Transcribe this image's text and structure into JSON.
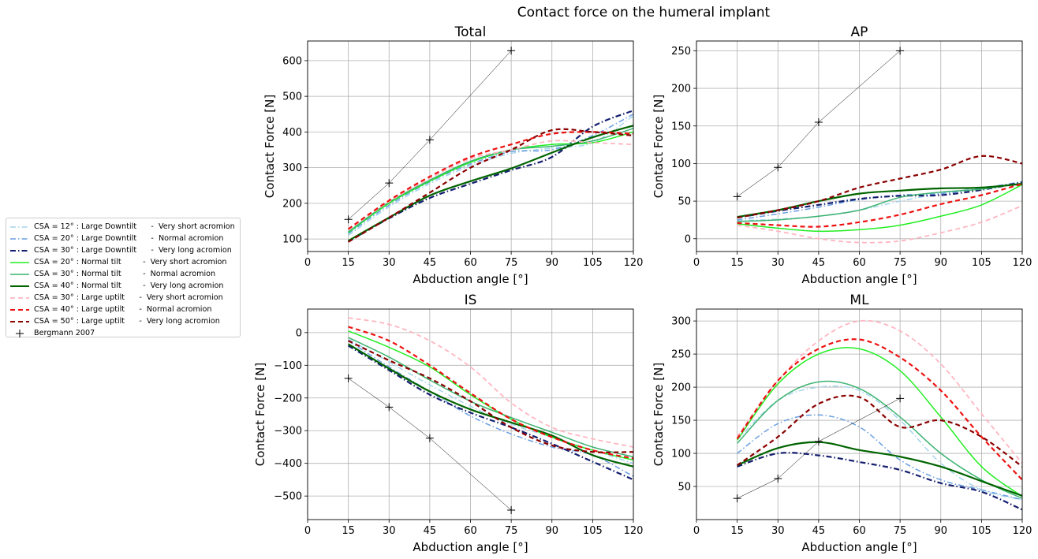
{
  "figure": {
    "title": "Contact force on the humeral implant"
  },
  "legend": {
    "placement": "left-center",
    "entries": [
      {
        "label": "CSA = 12° : Large Downtilt      -  Very short acromion",
        "color": "#a6d4ec",
        "dash": "dashdot",
        "width": 1.5
      },
      {
        "label": "CSA = 20° : Large Downtilt      -  Normal acromion",
        "color": "#6a9fe0",
        "dash": "dashdot",
        "width": 1.5
      },
      {
        "label": "CSA = 30° : Large Downtilt      -  Very long acromion",
        "color": "#141e6e",
        "dash": "dashdot",
        "width": 2.2
      },
      {
        "label": "CSA = 20° : Normal tilt         -  Very short acromion",
        "color": "#22ee22",
        "dash": "solid",
        "width": 1.5
      },
      {
        "label": "CSA = 30° : Normal tilt         -  Normal acromion",
        "color": "#3cb371",
        "dash": "solid",
        "width": 1.5
      },
      {
        "label": "CSA = 40° : Normal tilt         -  Very long acromion",
        "color": "#006400",
        "dash": "solid",
        "width": 2.2
      },
      {
        "label": "CSA = 30° : Large uptilt      -  Very short acromion",
        "color": "#ffb6c1",
        "dash": "dashed",
        "width": 1.8
      },
      {
        "label": "CSA = 40° : Large uptilt      -  Normal acromion",
        "color": "#ee1111",
        "dash": "dashed",
        "width": 2.2
      },
      {
        "label": "CSA = 50° : Large uptilt      -  Very long acromion",
        "color": "#8b0000",
        "dash": "dashed",
        "width": 2.2
      },
      {
        "label": "Bergmann 2007",
        "color": "#000000",
        "dash": "marker",
        "width": 0.5
      }
    ]
  },
  "chart_data": [
    {
      "type": "line",
      "title": "Total",
      "xlabel": "Abduction angle [°]",
      "ylabel": "Contact Force [N]",
      "xlim": [
        0,
        120
      ],
      "ylim": [
        65,
        655
      ],
      "xticks": [
        "0",
        "15",
        "30",
        "45",
        "60",
        "75",
        "90",
        "105",
        "120"
      ],
      "yticks": [
        "100",
        "200",
        "300",
        "400",
        "500",
        "600"
      ],
      "grid": true,
      "x": [
        15,
        30,
        45,
        60,
        75,
        90,
        105,
        120
      ],
      "series": [
        {
          "name": "CSA = 12° : Large Downtilt      -  Very short acromion",
          "values": [
            110,
            190,
            255,
            305,
            340,
            355,
            370,
            445
          ]
        },
        {
          "name": "CSA = 20° : Large Downtilt      -  Normal acromion",
          "values": [
            115,
            195,
            260,
            310,
            345,
            350,
            390,
            450
          ]
        },
        {
          "name": "CSA = 30° : Large Downtilt      -  Very long acromion",
          "values": [
            93,
            158,
            215,
            255,
            293,
            330,
            415,
            460
          ]
        },
        {
          "name": "CSA = 20° : Normal tilt         -  Very short acromion",
          "values": [
            118,
            200,
            262,
            315,
            350,
            365,
            370,
            400
          ]
        },
        {
          "name": "CSA = 30° : Normal tilt         -  Normal acromion",
          "values": [
            120,
            203,
            265,
            318,
            350,
            360,
            375,
            410
          ]
        },
        {
          "name": "CSA = 40° : Normal tilt         -  Very long acromion",
          "values": [
            95,
            160,
            222,
            262,
            298,
            342,
            385,
            418
          ]
        },
        {
          "name": "CSA = 30° : Large uptilt      -  Very short acromion",
          "values": [
            125,
            205,
            270,
            325,
            350,
            375,
            370,
            365
          ]
        },
        {
          "name": "CSA = 40° : Large uptilt      -  Normal acromion",
          "values": [
            128,
            208,
            275,
            330,
            365,
            395,
            400,
            395
          ]
        },
        {
          "name": "CSA = 50° : Large uptilt      -  Very long acromion",
          "values": [
            92,
            160,
            230,
            300,
            350,
            405,
            400,
            390
          ]
        },
        {
          "name": "Bergmann 2007",
          "x": [
            15,
            30,
            45,
            75
          ],
          "values": [
            155,
            257,
            378,
            628
          ]
        }
      ]
    },
    {
      "type": "line",
      "title": "AP",
      "xlabel": "Abduction angle [°]",
      "ylabel": "Contact Force [N]",
      "xlim": [
        0,
        120
      ],
      "ylim": [
        -17,
        263
      ],
      "xticks": [
        "0",
        "15",
        "30",
        "45",
        "60",
        "75",
        "90",
        "105",
        "120"
      ],
      "yticks": [
        "0",
        "50",
        "100",
        "150",
        "200",
        "250"
      ],
      "grid": true,
      "x": [
        15,
        30,
        45,
        60,
        75,
        90,
        105,
        120
      ],
      "series": [
        {
          "name": "CSA = 12° : Large Downtilt      -  Very short acromion",
          "values": [
            24,
            26,
            30,
            38,
            50,
            60,
            68,
            75
          ]
        },
        {
          "name": "CSA = 20° : Large Downtilt      -  Normal acromion",
          "values": [
            25,
            33,
            42,
            52,
            58,
            60,
            67,
            76
          ]
        },
        {
          "name": "CSA = 30° : Large Downtilt      -  Very long acromion",
          "values": [
            28,
            37,
            45,
            53,
            57,
            58,
            65,
            75
          ]
        },
        {
          "name": "CSA = 20° : Normal tilt         -  Very short acromion",
          "values": [
            20,
            14,
            10,
            12,
            18,
            30,
            45,
            72
          ]
        },
        {
          "name": "CSA = 30° : Normal tilt         -  Normal acromion",
          "values": [
            23,
            25,
            30,
            38,
            55,
            62,
            66,
            74
          ]
        },
        {
          "name": "CSA = 40° : Normal tilt         -  Very long acromion",
          "values": [
            29,
            38,
            50,
            60,
            64,
            67,
            68,
            73
          ]
        },
        {
          "name": "CSA = 30° : Large uptilt      -  Very short acromion",
          "values": [
            18,
            10,
            0,
            -5,
            -3,
            8,
            22,
            44
          ]
        },
        {
          "name": "CSA = 40° : Large uptilt      -  Normal acromion",
          "values": [
            21,
            18,
            16,
            22,
            32,
            46,
            58,
            73
          ]
        },
        {
          "name": "CSA = 50° : Large uptilt      -  Very long acromion",
          "values": [
            28,
            38,
            50,
            68,
            80,
            92,
            110,
            100
          ]
        },
        {
          "name": "Bergmann 2007",
          "x": [
            15,
            30,
            45,
            75
          ],
          "values": [
            56,
            95,
            155,
            250
          ]
        }
      ]
    },
    {
      "type": "line",
      "title": "IS",
      "xlabel": "Abduction angle [°]",
      "ylabel": "Contact Force [N]",
      "xlim": [
        0,
        120
      ],
      "ylim": [
        -572,
        72
      ],
      "xticks": [
        "0",
        "15",
        "30",
        "45",
        "60",
        "75",
        "90",
        "105",
        "120"
      ],
      "yticks": [
        "0",
        "−100",
        "−200",
        "−300",
        "−400",
        "−500"
      ],
      "grid": true,
      "x": [
        15,
        30,
        45,
        60,
        75,
        90,
        105,
        120
      ],
      "series": [
        {
          "name": "CSA = 12° : Large Downtilt      -  Very short acromion",
          "values": [
            -20,
            -90,
            -160,
            -225,
            -280,
            -320,
            -360,
            -400
          ]
        },
        {
          "name": "CSA = 20° : Large Downtilt      -  Normal acromion",
          "values": [
            -25,
            -105,
            -180,
            -255,
            -310,
            -350,
            -375,
            -440
          ]
        },
        {
          "name": "CSA = 30° : Large Downtilt      -  Very long acromion",
          "values": [
            -40,
            -115,
            -190,
            -245,
            -290,
            -340,
            -395,
            -450
          ]
        },
        {
          "name": "CSA = 20° : Normal tilt         -  Very short acromion",
          "values": [
            5,
            -45,
            -105,
            -190,
            -265,
            -320,
            -360,
            -390
          ]
        },
        {
          "name": "CSA = 30° : Normal tilt         -  Normal acromion",
          "values": [
            -15,
            -75,
            -145,
            -210,
            -260,
            -305,
            -350,
            -380
          ]
        },
        {
          "name": "CSA = 40° : Normal tilt         -  Very long acromion",
          "values": [
            -35,
            -110,
            -180,
            -235,
            -275,
            -315,
            -375,
            -410
          ]
        },
        {
          "name": "CSA = 30° : Large uptilt      -  Very short acromion",
          "values": [
            45,
            25,
            -25,
            -105,
            -215,
            -290,
            -325,
            -350
          ]
        },
        {
          "name": "CSA = 40° : Large uptilt      -  Normal acromion",
          "values": [
            18,
            -25,
            -100,
            -185,
            -265,
            -320,
            -360,
            -385
          ]
        },
        {
          "name": "CSA = 50° : Large uptilt      -  Very long acromion",
          "values": [
            -25,
            -85,
            -140,
            -210,
            -290,
            -345,
            -365,
            -365
          ]
        },
        {
          "name": "Bergmann 2007",
          "x": [
            15,
            30,
            45,
            75
          ],
          "values": [
            -140,
            -228,
            -323,
            -543
          ]
        }
      ]
    },
    {
      "type": "line",
      "title": "ML",
      "xlabel": "Abduction angle [°]",
      "ylabel": "Contact Force [N]",
      "xlim": [
        0,
        120
      ],
      "ylim": [
        0,
        318
      ],
      "xticks": [
        "0",
        "15",
        "30",
        "45",
        "60",
        "75",
        "90",
        "105",
        "120"
      ],
      "yticks": [
        "50",
        "100",
        "150",
        "200",
        "250",
        "300"
      ],
      "grid": true,
      "x": [
        15,
        30,
        45,
        60,
        75,
        90,
        105,
        120
      ],
      "series": [
        {
          "name": "CSA = 12° : Large Downtilt      -  Very short acromion",
          "values": [
            120,
            180,
            200,
            195,
            150,
            85,
            45,
            30
          ]
        },
        {
          "name": "CSA = 20° : Large Downtilt      -  Normal acromion",
          "values": [
            100,
            145,
            158,
            140,
            90,
            60,
            45,
            30
          ]
        },
        {
          "name": "CSA = 30° : Large Downtilt      -  Very long acromion",
          "values": [
            80,
            100,
            97,
            87,
            75,
            55,
            42,
            15
          ]
        },
        {
          "name": "CSA = 20° : Normal tilt         -  Very short acromion",
          "values": [
            120,
            205,
            250,
            258,
            225,
            155,
            80,
            35
          ]
        },
        {
          "name": "CSA = 30° : Normal tilt         -  Normal acromion",
          "values": [
            115,
            180,
            208,
            198,
            155,
            100,
            60,
            32
          ]
        },
        {
          "name": "CSA = 40° : Normal tilt         -  Very long acromion",
          "values": [
            82,
            108,
            117,
            105,
            95,
            80,
            58,
            36
          ]
        },
        {
          "name": "CSA = 30° : Large uptilt      -  Very short acromion",
          "values": [
            125,
            210,
            270,
            300,
            285,
            235,
            160,
            85
          ]
        },
        {
          "name": "CSA = 40° : Large uptilt      -  Normal acromion",
          "values": [
            122,
            210,
            258,
            272,
            245,
            195,
            125,
            60
          ]
        },
        {
          "name": "CSA = 50° : Large uptilt      -  Very long acromion",
          "values": [
            82,
            125,
            175,
            185,
            140,
            150,
            125,
            80
          ]
        },
        {
          "name": "Bergmann 2007",
          "x": [
            15,
            30,
            45,
            75
          ],
          "values": [
            32,
            62,
            118,
            183
          ]
        }
      ]
    }
  ]
}
